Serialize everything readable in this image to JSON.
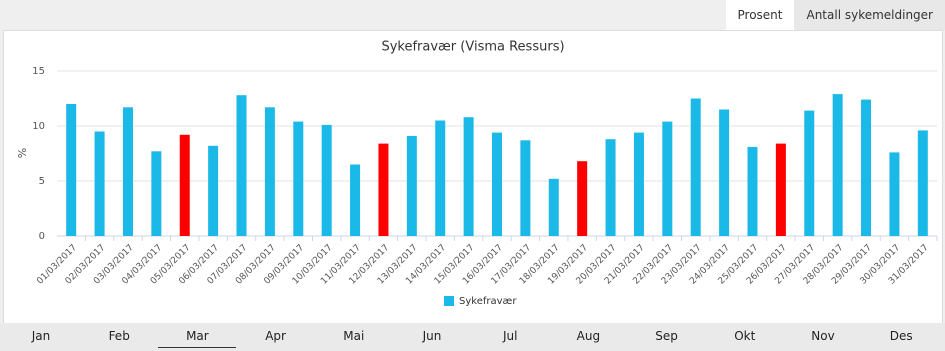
{
  "tabs": [
    {
      "label": "Prosent",
      "active": true
    },
    {
      "label": "Antall sykemeldinger",
      "active": false
    }
  ],
  "chart_data": {
    "type": "bar",
    "title": "Sykefravær (Visma Ressurs)",
    "y_label": "%",
    "categories": [
      "01/03/2017",
      "02/03/2017",
      "03/03/2017",
      "04/03/2017",
      "05/03/2017",
      "06/03/2017",
      "07/03/2017",
      "08/03/2017",
      "09/03/2017",
      "10/03/2017",
      "11/03/2017",
      "12/03/2017",
      "13/03/2017",
      "14/03/2017",
      "15/03/2017",
      "16/03/2017",
      "17/03/2017",
      "18/03/2017",
      "19/03/2017",
      "20/03/2017",
      "21/03/2017",
      "22/03/2017",
      "23/03/2017",
      "24/03/2017",
      "25/03/2017",
      "26/03/2017",
      "27/03/2017",
      "28/03/2017",
      "29/03/2017",
      "30/03/2017",
      "31/03/2017"
    ],
    "series": [
      {
        "name": "Sykefravær",
        "color": "#1ab9e8",
        "values": [
          12.0,
          9.5,
          11.7,
          7.7,
          9.2,
          8.2,
          12.8,
          11.7,
          10.4,
          10.1,
          6.5,
          8.4,
          9.1,
          10.5,
          10.8,
          9.4,
          8.7,
          5.2,
          6.8,
          8.8,
          9.4,
          10.4,
          12.5,
          11.5,
          8.1,
          8.4,
          11.4,
          12.9,
          12.4,
          7.6,
          9.6
        ],
        "point_colors": [
          "#1ab9e8",
          "#1ab9e8",
          "#1ab9e8",
          "#1ab9e8",
          "#ff0000",
          "#1ab9e8",
          "#1ab9e8",
          "#1ab9e8",
          "#1ab9e8",
          "#1ab9e8",
          "#1ab9e8",
          "#ff0000",
          "#1ab9e8",
          "#1ab9e8",
          "#1ab9e8",
          "#1ab9e8",
          "#1ab9e8",
          "#1ab9e8",
          "#ff0000",
          "#1ab9e8",
          "#1ab9e8",
          "#1ab9e8",
          "#1ab9e8",
          "#1ab9e8",
          "#1ab9e8",
          "#ff0000",
          "#1ab9e8",
          "#1ab9e8",
          "#1ab9e8",
          "#1ab9e8",
          "#1ab9e8"
        ]
      }
    ],
    "ylim": [
      0,
      15
    ],
    "yticks": [
      0,
      5,
      10,
      15
    ],
    "grid": true,
    "legend": "bottom"
  },
  "months": [
    {
      "label": "Jan",
      "selected": false
    },
    {
      "label": "Feb",
      "selected": false
    },
    {
      "label": "Mar",
      "selected": true
    },
    {
      "label": "Apr",
      "selected": false
    },
    {
      "label": "Mai",
      "selected": false
    },
    {
      "label": "Jun",
      "selected": false
    },
    {
      "label": "Jul",
      "selected": false
    },
    {
      "label": "Aug",
      "selected": false
    },
    {
      "label": "Sep",
      "selected": false
    },
    {
      "label": "Okt",
      "selected": false
    },
    {
      "label": "Nov",
      "selected": false
    },
    {
      "label": "Des",
      "selected": false
    }
  ]
}
